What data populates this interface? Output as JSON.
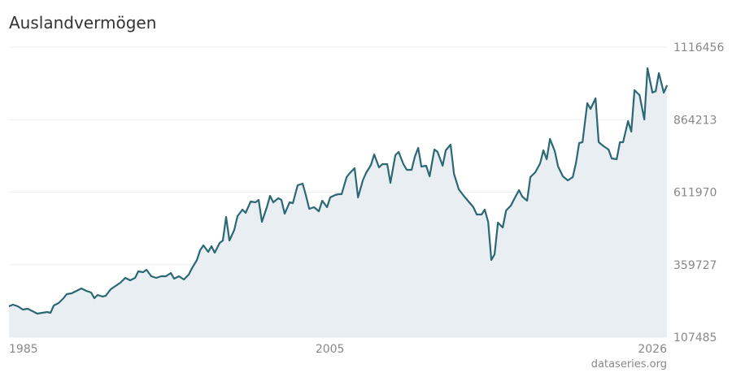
{
  "chart_data": {
    "type": "line",
    "title": "Auslandvermögen",
    "source": "dataseries.org",
    "color": "#2b6775",
    "fill": "#e8eef1",
    "grid": true,
    "xlim": [
      1985,
      2026
    ],
    "xticks": [
      1985,
      2005,
      2026
    ],
    "ylim": [
      107485,
      1116456
    ],
    "yticks": [
      107485,
      359727,
      611970,
      864213,
      1116456
    ],
    "x": [
      1985.0,
      1985.25,
      1985.56,
      1985.86,
      1986.17,
      1986.47,
      1986.77,
      1987.08,
      1987.38,
      1987.59,
      1987.79,
      1988.09,
      1988.4,
      1988.6,
      1988.9,
      1989.21,
      1989.51,
      1989.82,
      1990.12,
      1990.32,
      1990.53,
      1990.83,
      1991.03,
      1991.34,
      1991.64,
      1991.94,
      1992.25,
      1992.55,
      1992.86,
      1993.06,
      1993.36,
      1993.57,
      1993.87,
      1994.18,
      1994.48,
      1994.78,
      1995.09,
      1995.29,
      1995.59,
      1995.9,
      1996.2,
      1996.41,
      1996.71,
      1996.91,
      1997.12,
      1997.42,
      1997.62,
      1997.82,
      1998.13,
      1998.33,
      1998.53,
      1998.74,
      1999.04,
      1999.24,
      1999.55,
      1999.75,
      2000.06,
      2000.36,
      2000.56,
      2000.76,
      2001.07,
      2001.27,
      2001.47,
      2001.78,
      2001.98,
      2002.18,
      2002.49,
      2002.69,
      2002.99,
      2003.3,
      2003.5,
      2003.71,
      2004.01,
      2004.31,
      2004.52,
      2004.82,
      2005.02,
      2005.33,
      2005.53,
      2005.73,
      2006.04,
      2006.24,
      2006.54,
      2006.75,
      2007.05,
      2007.25,
      2007.56,
      2007.76,
      2008.06,
      2008.27,
      2008.57,
      2008.77,
      2009.08,
      2009.28,
      2009.58,
      2009.79,
      2010.09,
      2010.29,
      2010.5,
      2010.7,
      2011.0,
      2011.21,
      2011.51,
      2011.71,
      2012.02,
      2012.22,
      2012.52,
      2012.73,
      2013.03,
      2013.34,
      2013.64,
      2013.94,
      2014.15,
      2014.45,
      2014.65,
      2014.86,
      2015.06,
      2015.26,
      2015.47,
      2015.77,
      2015.98,
      2016.28,
      2016.48,
      2016.78,
      2016.99,
      2017.29,
      2017.49,
      2017.8,
      2018.1,
      2018.3,
      2018.51,
      2018.71,
      2019.01,
      2019.22,
      2019.52,
      2019.82,
      2020.13,
      2020.33,
      2020.53,
      2020.74,
      2021.04,
      2021.24,
      2021.55,
      2021.75,
      2022.06,
      2022.36,
      2022.56,
      2022.87,
      2023.07,
      2023.27,
      2023.58,
      2023.78,
      2023.98,
      2024.29,
      2024.59,
      2024.79,
      2025.1,
      2025.3,
      2025.5,
      2025.8,
      2026.01
    ],
    "values": [
      214900,
      220500,
      214900,
      203600,
      206400,
      197900,
      189500,
      192300,
      195100,
      192300,
      217700,
      226200,
      243100,
      257300,
      260100,
      268600,
      277100,
      268600,
      262900,
      243100,
      254500,
      248800,
      251600,
      274200,
      285500,
      296800,
      313800,
      305300,
      313800,
      336400,
      333600,
      342100,
      319500,
      313800,
      319500,
      319500,
      330800,
      311000,
      319500,
      308100,
      325100,
      347700,
      376000,
      409900,
      426800,
      404200,
      424000,
      401400,
      435300,
      443800,
      525700,
      443800,
      480500,
      528600,
      551200,
      539900,
      579400,
      576600,
      585100,
      508800,
      559700,
      599200,
      576600,
      590800,
      585100,
      537100,
      576600,
      573800,
      636000,
      641600,
      602100,
      554000,
      559700,
      545500,
      582300,
      559700,
      593600,
      602100,
      604900,
      604900,
      664200,
      678400,
      695300,
      593600,
      653000,
      678400,
      706600,
      743400,
      698200,
      709400,
      709400,
      644400,
      740500,
      751800,
      709400,
      689700,
      689700,
      734900,
      766000,
      701000,
      703800,
      667000,
      760300,
      751800,
      703800,
      757500,
      777300,
      675500,
      621800,
      599200,
      579400,
      559700,
      534200,
      534200,
      551200,
      508800,
      376000,
      395800,
      506000,
      489000,
      548400,
      565300,
      587900,
      619000,
      596400,
      582300,
      664200,
      681200,
      712300,
      757500,
      726400,
      797000,
      754700,
      701000,
      667000,
      652900,
      664200,
      712300,
      782900,
      785700,
      921400,
      901600,
      938300,
      785700,
      771600,
      760300,
      729200,
      726400,
      785700,
      785700,
      859200,
      822500,
      966600,
      949600,
      864900,
      1042900,
      958100,
      963800,
      1026000,
      958100,
      983600
    ]
  }
}
